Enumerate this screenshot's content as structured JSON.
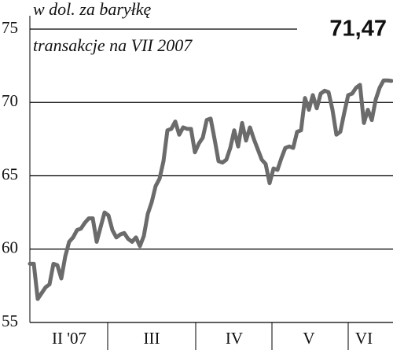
{
  "chart_data": {
    "type": "line",
    "title": "w dol. za baryłkę",
    "subtitle": "transakcje na VII 2007",
    "annotation": "71,47",
    "categories": [
      null,
      null,
      null,
      null,
      null,
      null,
      null,
      null,
      null,
      null,
      "II '07",
      null,
      null,
      null,
      null,
      null,
      null,
      null,
      null,
      null,
      null,
      null,
      null,
      null,
      null,
      null,
      null,
      null,
      null,
      null,
      null,
      "III",
      null,
      null,
      null,
      null,
      null,
      null,
      null,
      null,
      null,
      null,
      null,
      null,
      null,
      null,
      null,
      null,
      null,
      null,
      null,
      null,
      "IV",
      null,
      null,
      null,
      null,
      null,
      null,
      null,
      null,
      null,
      null,
      null,
      null,
      null,
      null,
      null,
      null,
      null,
      null,
      "V",
      null,
      null,
      null,
      null,
      null,
      null,
      null,
      null,
      null,
      null,
      null,
      null,
      null,
      "VI",
      null,
      null,
      null,
      null,
      null,
      null,
      null
    ],
    "values": [
      59.0,
      59.0,
      56.6,
      57.0,
      57.4,
      57.6,
      59.0,
      58.9,
      58.0,
      59.5,
      60.5,
      60.8,
      61.3,
      61.4,
      61.8,
      62.1,
      62.1,
      60.5,
      61.5,
      62.5,
      62.3,
      61.3,
      60.8,
      61.0,
      61.1,
      60.7,
      60.5,
      60.8,
      60.2,
      60.9,
      62.4,
      63.2,
      64.3,
      64.8,
      66.0,
      68.1,
      68.2,
      68.7,
      67.8,
      68.3,
      68.2,
      68.2,
      66.6,
      67.2,
      67.6,
      68.8,
      68.9,
      67.5,
      66.0,
      65.9,
      66.1,
      66.9,
      68.1,
      67.0,
      68.6,
      67.4,
      68.3,
      67.5,
      66.8,
      66.1,
      65.8,
      64.5,
      65.5,
      65.4,
      66.2,
      66.9,
      67.0,
      66.9,
      68.0,
      68.1,
      70.3,
      69.5,
      70.5,
      69.6,
      70.6,
      70.8,
      70.7,
      69.5,
      67.8,
      68.0,
      69.3,
      70.5,
      70.6,
      71.0,
      71.2,
      68.6,
      69.5,
      68.8,
      70.2,
      71.0,
      71.5,
      71.5,
      71.47
    ],
    "color": "#6b6b6b",
    "ylim": [
      55,
      75
    ],
    "yticks": [
      55,
      60,
      65,
      70,
      75
    ],
    "grid": true
  }
}
